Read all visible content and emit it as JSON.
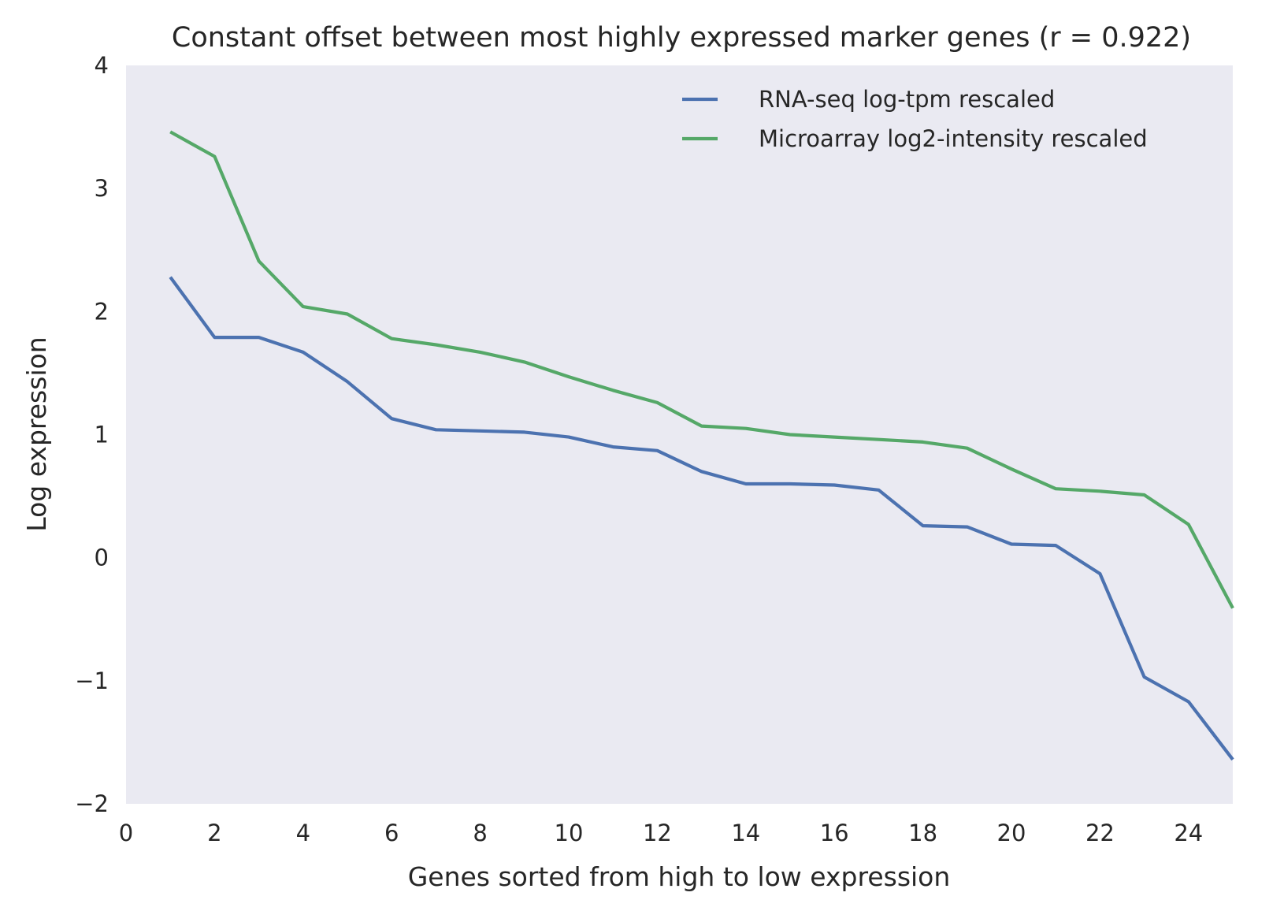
{
  "chart_data": {
    "type": "line",
    "title": "Constant offset between most highly expressed marker genes (r = 0.922)",
    "xlabel": "Genes sorted from high to low expression",
    "ylabel": "Log expression",
    "xlim": [
      0,
      25
    ],
    "ylim": [
      -2,
      4
    ],
    "xticks": [
      0,
      2,
      4,
      6,
      8,
      10,
      12,
      14,
      16,
      18,
      20,
      22,
      24
    ],
    "yticks": [
      -2,
      -1,
      0,
      1,
      2,
      3,
      4
    ],
    "grid": false,
    "legend_position": "top-right",
    "background": "#EAEAF2",
    "x": [
      1,
      2,
      3,
      4,
      5,
      6,
      7,
      8,
      9,
      10,
      11,
      12,
      13,
      14,
      15,
      16,
      17,
      18,
      19,
      20,
      21,
      22,
      23,
      24,
      25
    ],
    "series": [
      {
        "name": "RNA-seq log-tpm rescaled",
        "color": "#4C72B0",
        "values": [
          2.28,
          1.79,
          1.79,
          1.67,
          1.43,
          1.13,
          1.04,
          1.03,
          1.02,
          0.98,
          0.9,
          0.87,
          0.7,
          0.6,
          0.6,
          0.59,
          0.55,
          0.26,
          0.25,
          0.11,
          0.1,
          -0.13,
          -0.97,
          -1.17,
          -1.64
        ]
      },
      {
        "name": "Microarray log2-intensity rescaled",
        "color": "#55A868",
        "values": [
          3.46,
          3.26,
          2.41,
          2.04,
          1.98,
          1.78,
          1.73,
          1.67,
          1.59,
          1.47,
          1.36,
          1.26,
          1.07,
          1.05,
          1.0,
          0.98,
          0.96,
          0.94,
          0.89,
          0.72,
          0.56,
          0.54,
          0.51,
          0.27,
          -0.41
        ]
      }
    ]
  }
}
